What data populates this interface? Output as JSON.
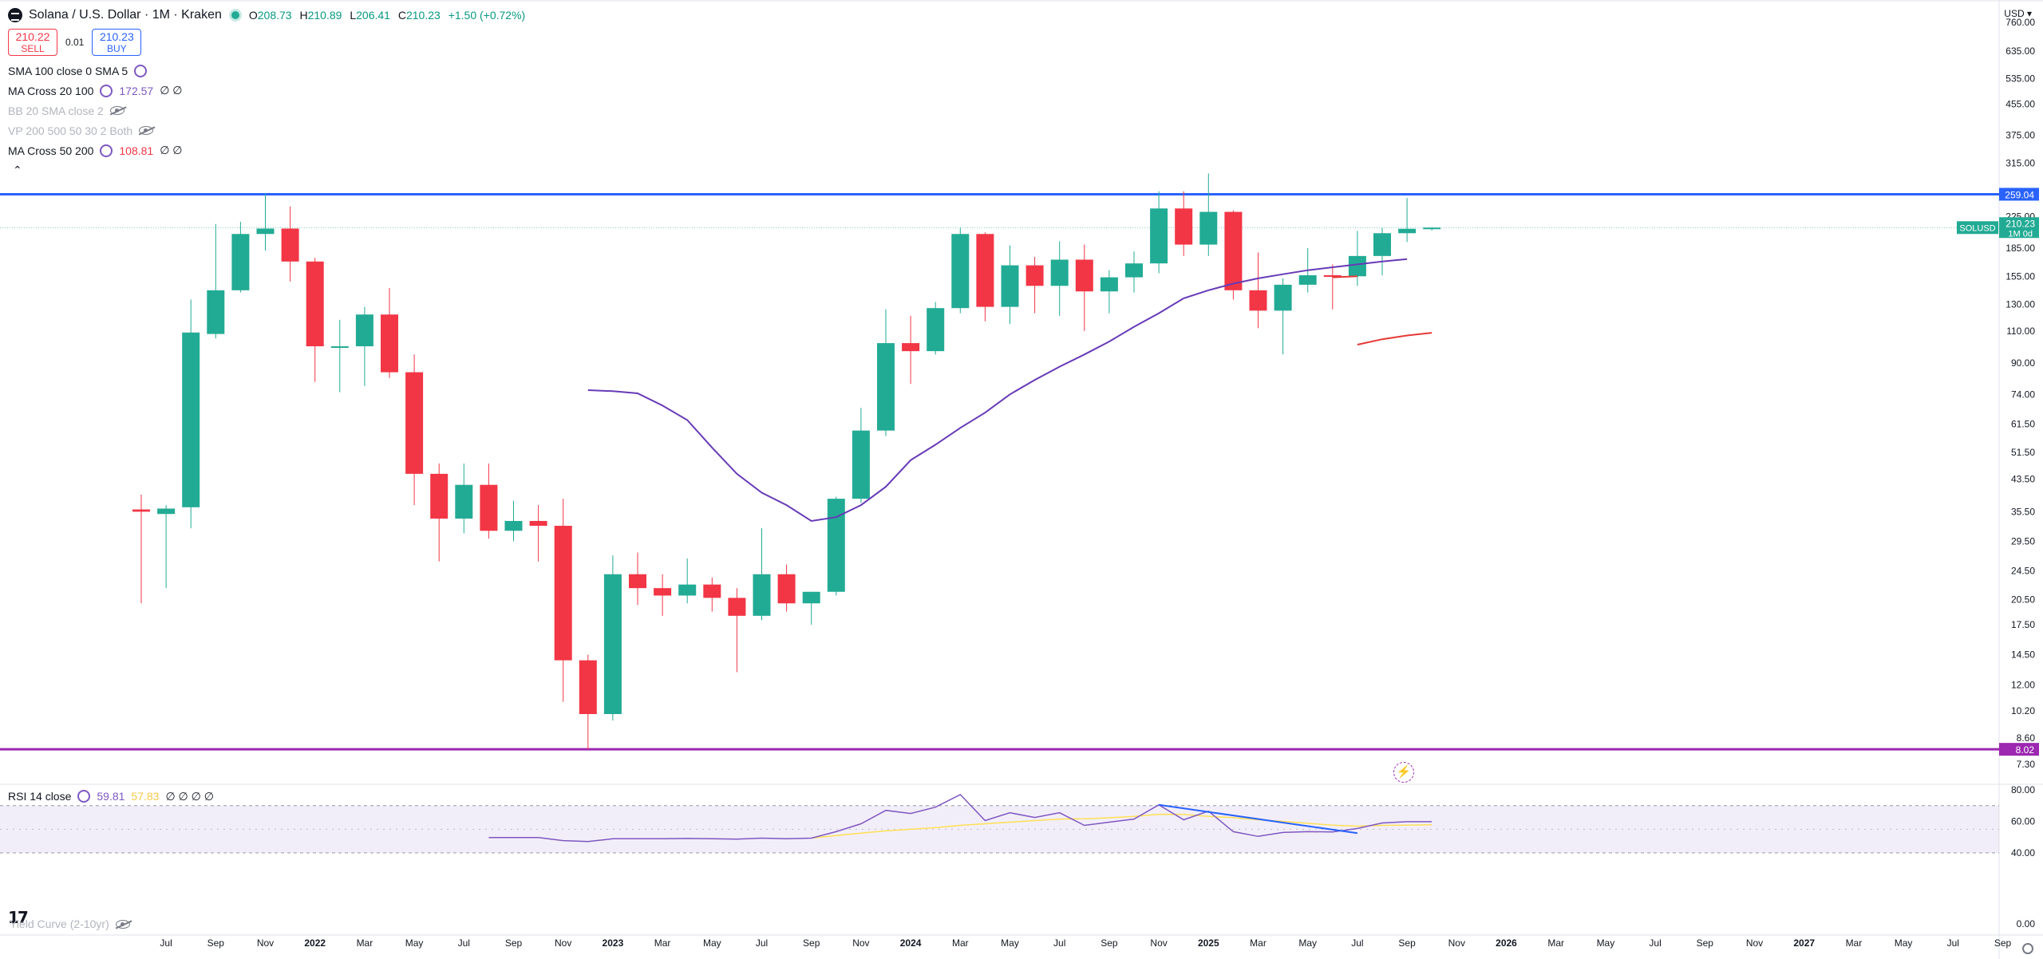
{
  "header": {
    "title": "Solana / U.S. Dollar · 1M · Kraken",
    "open_label": "O",
    "open": "208.73",
    "high_label": "H",
    "high": "210.89",
    "low_label": "L",
    "low": "206.41",
    "close_label": "C",
    "close": "210.23",
    "change": "+1.50 (+0.72%)"
  },
  "trade": {
    "sell_price": "210.22",
    "sell_label": "SELL",
    "spread": "0.01",
    "buy_price": "210.23",
    "buy_label": "BUY"
  },
  "indicators": [
    {
      "label": "SMA 100 close 0 SMA 5",
      "value": "",
      "extra": ""
    },
    {
      "label": "MA Cross 20 100",
      "value": "172.57",
      "extra": "∅ ∅"
    },
    {
      "label": "BB 20 SMA close 2",
      "value": "",
      "extra": ""
    },
    {
      "label": "VP 200 500 50 30 2 Both",
      "value": "",
      "extra": ""
    },
    {
      "label": "MA Cross 50 200",
      "value": "108.81",
      "extra": "∅ ∅"
    }
  ],
  "rsi_legend": {
    "label": "RSI 14 close",
    "value1": "59.81",
    "value2": "57.83",
    "extra": "∅ ∅ ∅ ∅"
  },
  "yield_legend": {
    "label": "Yield Curve (2-10yr)"
  },
  "axis": {
    "currency": "USD"
  },
  "colors": {
    "up": "#22ab94",
    "down": "#f23645",
    "ma20": "#673ab7",
    "ma50": "#e53935",
    "resistance": "#2962ff",
    "support": "#9c27b0",
    "rsi": "#7e57c2",
    "rsi_ma": "#ffe054"
  },
  "chart_data": [
    {
      "type": "candlestick",
      "title": "Solana / U.S. Dollar · 1M · Kraken",
      "y_scale": "log",
      "ylim": [
        7.3,
        760
      ],
      "y_ticks": [
        "760.00",
        "635.00",
        "535.00",
        "455.00",
        "375.00",
        "315.00",
        "225.00",
        "185.00",
        "155.00",
        "130.00",
        "110.00",
        "90.00",
        "74.00",
        "61.50",
        "51.50",
        "43.50",
        "35.50",
        "29.50",
        "24.50",
        "20.50",
        "17.50",
        "14.50",
        "12.00",
        "10.20",
        "8.60",
        "7.30"
      ],
      "x_ticks": [
        "Jul",
        "Sep",
        "Nov",
        "2022",
        "Mar",
        "May",
        "Jul",
        "Sep",
        "Nov",
        "2023",
        "Mar",
        "May",
        "Jul",
        "Sep",
        "Nov",
        "2024",
        "Mar",
        "May",
        "Jul",
        "Sep",
        "Nov",
        "2025",
        "Mar",
        "May",
        "Jul",
        "Sep",
        "Nov",
        "2026",
        "Mar",
        "May",
        "Jul",
        "Sep",
        "Nov",
        "2027",
        "Mar",
        "May",
        "Jul",
        "Sep"
      ],
      "bold_ticks": [
        "2022",
        "2023",
        "2024",
        "2025",
        "2026",
        "2027"
      ],
      "candles": [
        {
          "date": "2021-06",
          "o": 36.0,
          "h": 39.5,
          "l": 20.0,
          "c": 35.5
        },
        {
          "date": "2021-07",
          "o": 35.0,
          "h": 37.0,
          "l": 22.0,
          "c": 36.2
        },
        {
          "date": "2021-08",
          "o": 36.5,
          "h": 134.0,
          "l": 32.0,
          "c": 109.0
        },
        {
          "date": "2021-09",
          "o": 108.0,
          "h": 215.0,
          "l": 105.0,
          "c": 142.0
        },
        {
          "date": "2021-10",
          "o": 142.0,
          "h": 218.0,
          "l": 140.0,
          "c": 202.0
        },
        {
          "date": "2021-11",
          "o": 202.0,
          "h": 260.0,
          "l": 182.0,
          "c": 209.0
        },
        {
          "date": "2021-12",
          "o": 209.0,
          "h": 240.0,
          "l": 150.0,
          "c": 170.0
        },
        {
          "date": "2022-01",
          "o": 170.0,
          "h": 174.0,
          "l": 80.0,
          "c": 100.0
        },
        {
          "date": "2022-02",
          "o": 100.0,
          "h": 118.0,
          "l": 75.0,
          "c": 100.0
        },
        {
          "date": "2022-03",
          "o": 100.0,
          "h": 128.0,
          "l": 78.0,
          "c": 122.0
        },
        {
          "date": "2022-04",
          "o": 122.0,
          "h": 144.0,
          "l": 82.0,
          "c": 85.0
        },
        {
          "date": "2022-05",
          "o": 85.0,
          "h": 95.0,
          "l": 37.0,
          "c": 45.0
        },
        {
          "date": "2022-06",
          "o": 45.0,
          "h": 48.0,
          "l": 26.0,
          "c": 34.0
        },
        {
          "date": "2022-07",
          "o": 34.0,
          "h": 48.0,
          "l": 31.0,
          "c": 42.0
        },
        {
          "date": "2022-08",
          "o": 42.0,
          "h": 48.0,
          "l": 30.0,
          "c": 31.5
        },
        {
          "date": "2022-09",
          "o": 31.5,
          "h": 38.0,
          "l": 29.5,
          "c": 33.5
        },
        {
          "date": "2022-10",
          "o": 33.5,
          "h": 37.0,
          "l": 26.0,
          "c": 32.5
        },
        {
          "date": "2022-11",
          "o": 32.5,
          "h": 38.5,
          "l": 10.8,
          "c": 14.0
        },
        {
          "date": "2022-12",
          "o": 14.0,
          "h": 14.5,
          "l": 8.0,
          "c": 10.0
        },
        {
          "date": "2023-01",
          "o": 10.0,
          "h": 27.0,
          "l": 9.6,
          "c": 24.0
        },
        {
          "date": "2023-02",
          "o": 24.0,
          "h": 27.5,
          "l": 19.8,
          "c": 22.0
        },
        {
          "date": "2023-03",
          "o": 22.0,
          "h": 24.0,
          "l": 18.5,
          "c": 21.0
        },
        {
          "date": "2023-04",
          "o": 21.0,
          "h": 26.5,
          "l": 20.0,
          "c": 22.5
        },
        {
          "date": "2023-05",
          "o": 22.5,
          "h": 23.5,
          "l": 19.0,
          "c": 20.7
        },
        {
          "date": "2023-06",
          "o": 20.7,
          "h": 22.0,
          "l": 13.0,
          "c": 18.5
        },
        {
          "date": "2023-07",
          "o": 18.5,
          "h": 32.0,
          "l": 18.0,
          "c": 24.0
        },
        {
          "date": "2023-08",
          "o": 24.0,
          "h": 25.5,
          "l": 19.0,
          "c": 20.0
        },
        {
          "date": "2023-09",
          "o": 20.0,
          "h": 21.5,
          "l": 17.5,
          "c": 21.5
        },
        {
          "date": "2023-10",
          "o": 21.5,
          "h": 39.0,
          "l": 21.0,
          "c": 38.5
        },
        {
          "date": "2023-11",
          "o": 38.5,
          "h": 68.0,
          "l": 37.5,
          "c": 59.0
        },
        {
          "date": "2023-12",
          "o": 59.0,
          "h": 126.0,
          "l": 57.0,
          "c": 102.0
        },
        {
          "date": "2024-01",
          "o": 102.0,
          "h": 121.0,
          "l": 79.0,
          "c": 97.0
        },
        {
          "date": "2024-02",
          "o": 97.0,
          "h": 132.0,
          "l": 95.0,
          "c": 127.0
        },
        {
          "date": "2024-03",
          "o": 127.0,
          "h": 210.0,
          "l": 123.0,
          "c": 202.0
        },
        {
          "date": "2024-04",
          "o": 202.0,
          "h": 204.0,
          "l": 117.0,
          "c": 128.0
        },
        {
          "date": "2024-05",
          "o": 128.0,
          "h": 188.0,
          "l": 115.0,
          "c": 166.0
        },
        {
          "date": "2024-06",
          "o": 166.0,
          "h": 175.0,
          "l": 123.0,
          "c": 146.0
        },
        {
          "date": "2024-07",
          "o": 146.0,
          "h": 193.0,
          "l": 121.0,
          "c": 172.0
        },
        {
          "date": "2024-08",
          "o": 172.0,
          "h": 189.0,
          "l": 110.0,
          "c": 141.0
        },
        {
          "date": "2024-09",
          "o": 141.0,
          "h": 161.0,
          "l": 123.0,
          "c": 154.0
        },
        {
          "date": "2024-10",
          "o": 154.0,
          "h": 181.0,
          "l": 140.0,
          "c": 168.0
        },
        {
          "date": "2024-11",
          "o": 168.0,
          "h": 264.0,
          "l": 158.0,
          "c": 237.0
        },
        {
          "date": "2024-12",
          "o": 237.0,
          "h": 264.0,
          "l": 176.0,
          "c": 189.0
        },
        {
          "date": "2025-01",
          "o": 189.0,
          "h": 295.0,
          "l": 176.0,
          "c": 232.0
        },
        {
          "date": "2025-02",
          "o": 232.0,
          "h": 234.0,
          "l": 134.0,
          "c": 142.0
        },
        {
          "date": "2025-03",
          "o": 142.0,
          "h": 180.0,
          "l": 112.0,
          "c": 125.0
        },
        {
          "date": "2025-04",
          "o": 125.0,
          "h": 153.0,
          "l": 95.0,
          "c": 147.0
        },
        {
          "date": "2025-05",
          "o": 147.0,
          "h": 185.0,
          "l": 140.0,
          "c": 156.0
        },
        {
          "date": "2025-06",
          "o": 156.0,
          "h": 167.0,
          "l": 126.0,
          "c": 155.0
        },
        {
          "date": "2025-07",
          "o": 155.0,
          "h": 206.0,
          "l": 146.0,
          "c": 176.0
        },
        {
          "date": "2025-08",
          "o": 176.0,
          "h": 210.0,
          "l": 156.0,
          "c": 203.0
        },
        {
          "date": "2025-09",
          "o": 203.0,
          "h": 253.0,
          "l": 192.0,
          "c": 208.7
        },
        {
          "date": "2025-10",
          "o": 208.73,
          "h": 210.89,
          "l": 206.41,
          "c": 210.23
        }
      ],
      "ma_cross_20_100": [
        {
          "date": "2022-12",
          "v": 76
        },
        {
          "date": "2023-01",
          "v": 75.5
        },
        {
          "date": "2023-02",
          "v": 74.5
        },
        {
          "date": "2023-03",
          "v": 69
        },
        {
          "date": "2023-04",
          "v": 63
        },
        {
          "date": "2023-05",
          "v": 53
        },
        {
          "date": "2023-06",
          "v": 45
        },
        {
          "date": "2023-07",
          "v": 40
        },
        {
          "date": "2023-08",
          "v": 37
        },
        {
          "date": "2023-09",
          "v": 33.5
        },
        {
          "date": "2023-10",
          "v": 34.3
        },
        {
          "date": "2023-11",
          "v": 37
        },
        {
          "date": "2023-12",
          "v": 41.5
        },
        {
          "date": "2024-01",
          "v": 49
        },
        {
          "date": "2024-02",
          "v": 54
        },
        {
          "date": "2024-03",
          "v": 60
        },
        {
          "date": "2024-04",
          "v": 66
        },
        {
          "date": "2024-05",
          "v": 74
        },
        {
          "date": "2024-06",
          "v": 81
        },
        {
          "date": "2024-07",
          "v": 88
        },
        {
          "date": "2024-08",
          "v": 95
        },
        {
          "date": "2024-09",
          "v": 103
        },
        {
          "date": "2024-10",
          "v": 113
        },
        {
          "date": "2024-11",
          "v": 123
        },
        {
          "date": "2024-12",
          "v": 135
        },
        {
          "date": "2025-01",
          "v": 142
        },
        {
          "date": "2025-02",
          "v": 148
        },
        {
          "date": "2025-03",
          "v": 153
        },
        {
          "date": "2025-04",
          "v": 157
        },
        {
          "date": "2025-05",
          "v": 161
        },
        {
          "date": "2025-06",
          "v": 164
        },
        {
          "date": "2025-07",
          "v": 167
        },
        {
          "date": "2025-08",
          "v": 170
        },
        {
          "date": "2025-09",
          "v": 172.57
        }
      ],
      "ma_cross_50_200": [
        {
          "date": "2025-07",
          "v": 101
        },
        {
          "date": "2025-08",
          "v": 104.5
        },
        {
          "date": "2025-09",
          "v": 107
        },
        {
          "date": "2025-10",
          "v": 108.81
        }
      ],
      "short_red_segment": [
        {
          "date": "2025-06",
          "v": 154
        },
        {
          "date": "2025-07",
          "v": 155
        }
      ],
      "horizontal_lines": [
        {
          "price": 259.04,
          "label": "259.04",
          "color": "#2962ff"
        },
        {
          "price": 8.02,
          "label": "8.02",
          "color": "#9c27b0"
        }
      ],
      "price_label": {
        "price": 210.23,
        "symbol": "SOLUSD",
        "countdown": "1M 0d"
      }
    },
    {
      "type": "line",
      "title": "RSI 14 close",
      "ylim": [
        0,
        80
      ],
      "y_ticks": [
        "80.00",
        "60.00",
        "40.00",
        "0.00"
      ],
      "band": [
        40,
        70
      ],
      "rsi": [
        {
          "date": "2022-08",
          "v": 49.8
        },
        {
          "date": "2022-09",
          "v": 49.8
        },
        {
          "date": "2022-10",
          "v": 49.8
        },
        {
          "date": "2022-11",
          "v": 47.8
        },
        {
          "date": "2022-12",
          "v": 47.2
        },
        {
          "date": "2023-01",
          "v": 49.0
        },
        {
          "date": "2023-02",
          "v": 49.0
        },
        {
          "date": "2023-03",
          "v": 49.0
        },
        {
          "date": "2023-04",
          "v": 49.2
        },
        {
          "date": "2023-05",
          "v": 49.0
        },
        {
          "date": "2023-06",
          "v": 48.8
        },
        {
          "date": "2023-07",
          "v": 49.4
        },
        {
          "date": "2023-08",
          "v": 49.0
        },
        {
          "date": "2023-09",
          "v": 49.4
        },
        {
          "date": "2023-10",
          "v": 53.5
        },
        {
          "date": "2023-11",
          "v": 58.5
        },
        {
          "date": "2023-12",
          "v": 67.0
        },
        {
          "date": "2024-01",
          "v": 65.0
        },
        {
          "date": "2024-02",
          "v": 69.0
        },
        {
          "date": "2024-03",
          "v": 77.0
        },
        {
          "date": "2024-04",
          "v": 60.5
        },
        {
          "date": "2024-05",
          "v": 65.5
        },
        {
          "date": "2024-06",
          "v": 62.5
        },
        {
          "date": "2024-07",
          "v": 65.5
        },
        {
          "date": "2024-08",
          "v": 57.5
        },
        {
          "date": "2024-09",
          "v": 59.5
        },
        {
          "date": "2024-10",
          "v": 61.5
        },
        {
          "date": "2024-11",
          "v": 70.5
        },
        {
          "date": "2024-12",
          "v": 61.0
        },
        {
          "date": "2025-01",
          "v": 66.5
        },
        {
          "date": "2025-02",
          "v": 53.5
        },
        {
          "date": "2025-03",
          "v": 50.5
        },
        {
          "date": "2025-04",
          "v": 53.0
        },
        {
          "date": "2025-05",
          "v": 53.5
        },
        {
          "date": "2025-06",
          "v": 53.3
        },
        {
          "date": "2025-07",
          "v": 55.5
        },
        {
          "date": "2025-08",
          "v": 59.0
        },
        {
          "date": "2025-09",
          "v": 59.8
        },
        {
          "date": "2025-10",
          "v": 59.81
        }
      ],
      "rsi_ma": [
        {
          "date": "2023-09",
          "v": 49.4
        },
        {
          "date": "2023-10",
          "v": 51
        },
        {
          "date": "2023-11",
          "v": 52.5
        },
        {
          "date": "2023-12",
          "v": 54
        },
        {
          "date": "2024-01",
          "v": 55
        },
        {
          "date": "2024-02",
          "v": 56
        },
        {
          "date": "2024-03",
          "v": 57.5
        },
        {
          "date": "2024-04",
          "v": 58.5
        },
        {
          "date": "2024-05",
          "v": 59.5
        },
        {
          "date": "2024-06",
          "v": 60.5
        },
        {
          "date": "2024-07",
          "v": 61.5
        },
        {
          "date": "2024-08",
          "v": 61.7
        },
        {
          "date": "2024-09",
          "v": 62.3
        },
        {
          "date": "2024-10",
          "v": 63.2
        },
        {
          "date": "2024-11",
          "v": 64.5
        },
        {
          "date": "2024-12",
          "v": 64.4
        },
        {
          "date": "2025-01",
          "v": 63.2
        },
        {
          "date": "2025-02",
          "v": 62.4
        },
        {
          "date": "2025-03",
          "v": 61.0
        },
        {
          "date": "2025-04",
          "v": 60.0
        },
        {
          "date": "2025-05",
          "v": 58.8
        },
        {
          "date": "2025-06",
          "v": 57.6
        },
        {
          "date": "2025-07",
          "v": 57.0
        },
        {
          "date": "2025-08",
          "v": 57.5
        },
        {
          "date": "2025-09",
          "v": 57.6
        },
        {
          "date": "2025-10",
          "v": 57.83
        }
      ],
      "divergence_line": [
        {
          "date": "2024-11",
          "v": 70.5
        },
        {
          "date": "2025-07",
          "v": 52.5
        }
      ]
    }
  ]
}
